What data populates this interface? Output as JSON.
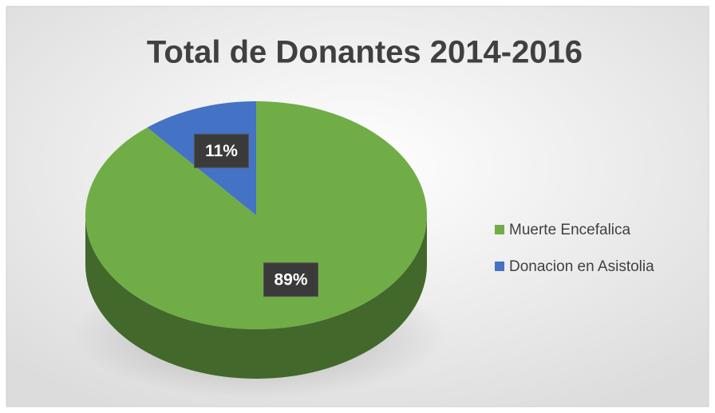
{
  "chart_data": {
    "type": "pie",
    "title": "Total de Donantes 2014-2016",
    "categories": [
      "Muerte Encefalica",
      "Donacion en Asistolia"
    ],
    "values": [
      89,
      11
    ],
    "value_labels": [
      "89%",
      "11%"
    ],
    "colors": [
      "#70ad47",
      "#4472c4"
    ],
    "legend": "right"
  }
}
